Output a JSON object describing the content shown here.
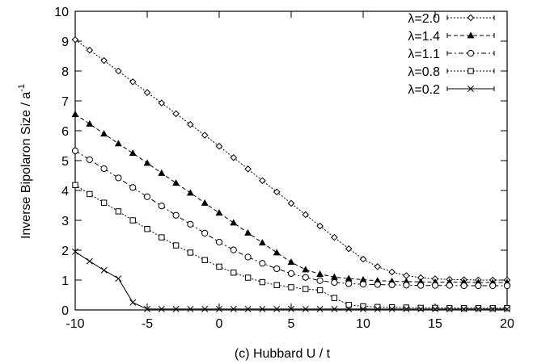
{
  "chart_data": {
    "type": "line",
    "xlabel": "(c) Hubbard U / t",
    "ylabel_main": "Inverse Bipolaron Size / a",
    "ylabel_sup": "-1",
    "xlim": [
      -10,
      20
    ],
    "ylim": [
      0,
      10
    ],
    "xticks": [
      "-10",
      "-5",
      "0",
      "5",
      "10",
      "15",
      "20"
    ],
    "yticks": [
      "0",
      "1",
      "2",
      "3",
      "4",
      "5",
      "6",
      "7",
      "8",
      "9",
      "10"
    ],
    "grid": false,
    "legend_position": "top-right",
    "x": [
      -10,
      -9,
      -8,
      -7,
      -6,
      -5,
      -4,
      -3,
      -2,
      -1,
      0,
      1,
      2,
      3,
      4,
      5,
      6,
      7,
      8,
      9,
      10,
      11,
      12,
      13,
      14,
      15,
      16,
      17,
      18,
      19,
      20
    ],
    "series": [
      {
        "name": "λ=2.0",
        "marker": "diamond",
        "dash": "2,2",
        "values": [
          9.05,
          8.7,
          8.35,
          8.0,
          7.64,
          7.28,
          6.93,
          6.57,
          6.21,
          5.85,
          5.48,
          5.1,
          4.72,
          4.33,
          3.95,
          3.57,
          3.19,
          2.81,
          2.43,
          2.05,
          1.7,
          1.45,
          1.27,
          1.15,
          1.08,
          1.04,
          1.02,
          1.01,
          1.0,
          1.0,
          1.0
        ]
      },
      {
        "name": "λ=1.4",
        "marker": "triangle",
        "dash": "5,3",
        "values": [
          6.55,
          6.23,
          5.9,
          5.57,
          5.25,
          4.92,
          4.58,
          4.25,
          3.92,
          3.58,
          3.25,
          2.92,
          2.58,
          2.25,
          1.92,
          1.6,
          1.35,
          1.2,
          1.1,
          1.05,
          1.01,
          0.98,
          0.96,
          0.95,
          0.94,
          0.93,
          0.93,
          0.93,
          0.92,
          0.92,
          0.92
        ]
      },
      {
        "name": "λ=1.1",
        "marker": "circle",
        "dash": "6,3,2,3",
        "values": [
          5.33,
          5.03,
          4.73,
          4.42,
          4.1,
          3.79,
          3.48,
          3.17,
          2.87,
          2.57,
          2.27,
          2.01,
          1.77,
          1.56,
          1.38,
          1.22,
          1.09,
          0.98,
          0.92,
          0.88,
          0.86,
          0.85,
          0.84,
          0.83,
          0.82,
          0.82,
          0.82,
          0.81,
          0.81,
          0.81,
          0.81
        ]
      },
      {
        "name": "λ=0.8",
        "marker": "square",
        "dash": "2,2",
        "values": [
          4.18,
          3.88,
          3.59,
          3.3,
          3.0,
          2.71,
          2.43,
          2.16,
          1.92,
          1.67,
          1.45,
          1.25,
          1.08,
          0.93,
          0.83,
          0.76,
          0.7,
          0.66,
          0.4,
          0.17,
          0.12,
          0.1,
          0.09,
          0.08,
          0.07,
          0.07,
          0.06,
          0.06,
          0.06,
          0.06,
          0.06
        ]
      },
      {
        "name": "λ=0.2",
        "marker": "cross",
        "dash": "",
        "values": [
          1.95,
          1.63,
          1.33,
          1.05,
          0.25,
          0.03,
          0.03,
          0.03,
          0.03,
          0.03,
          0.03,
          0.03,
          0.03,
          0.03,
          0.03,
          0.03,
          0.03,
          0.03,
          0.03,
          0.03,
          0.03,
          0.03,
          0.03,
          0.03,
          0.03,
          0.03,
          0.03,
          0.03,
          0.03,
          0.03,
          0.03
        ]
      }
    ]
  }
}
